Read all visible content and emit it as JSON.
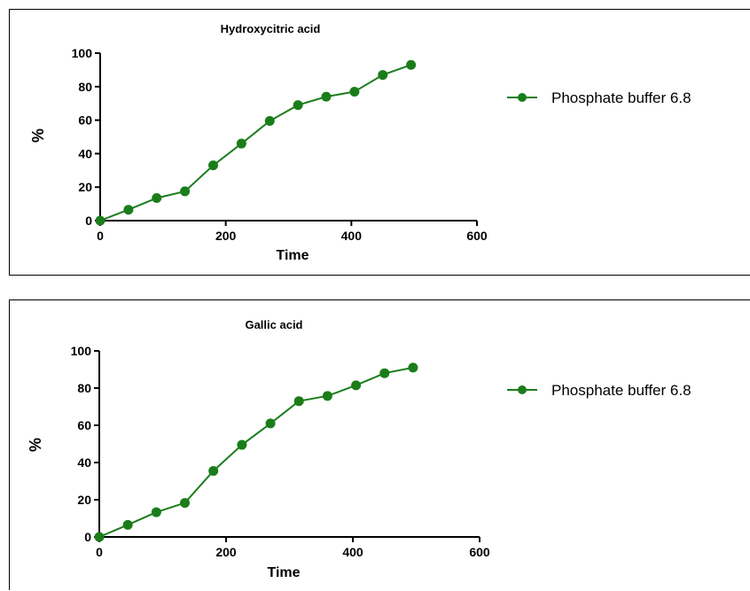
{
  "colors": {
    "series": "#1a7d1a",
    "axis": "#000000"
  },
  "chart_data": [
    {
      "type": "line",
      "title": "Hydroxycitric acid",
      "xlabel": "Time",
      "ylabel": "%",
      "xlim": [
        0,
        600
      ],
      "ylim": [
        0,
        100
      ],
      "x_ticks": [
        "0",
        "200",
        "400",
        "600"
      ],
      "y_ticks": [
        "0",
        "20",
        "40",
        "60",
        "80",
        "100"
      ],
      "grid": false,
      "legend_position": "right",
      "series": [
        {
          "name": "Phosphate buffer 6.8",
          "x": [
            0,
            45,
            90,
            135,
            180,
            225,
            270,
            315,
            360,
            405,
            450,
            495
          ],
          "y": [
            0,
            6.5,
            13.5,
            17.5,
            33,
            46,
            59.5,
            69,
            74,
            77,
            87,
            93
          ]
        }
      ]
    },
    {
      "type": "line",
      "title": "Gallic acid",
      "xlabel": "Time",
      "ylabel": "%",
      "xlim": [
        0,
        600
      ],
      "ylim": [
        0,
        100
      ],
      "x_ticks": [
        "0",
        "200",
        "400",
        "600"
      ],
      "y_ticks": [
        "0",
        "20",
        "40",
        "60",
        "80",
        "100"
      ],
      "grid": false,
      "legend_position": "right",
      "series": [
        {
          "name": "Phosphate buffer 6.8",
          "x": [
            0,
            45,
            90,
            135,
            180,
            225,
            270,
            315,
            360,
            405,
            450,
            495
          ],
          "y": [
            0,
            6.5,
            13.3,
            18.3,
            35.5,
            49.5,
            61,
            73,
            75.8,
            81.5,
            88,
            91
          ]
        }
      ]
    }
  ]
}
